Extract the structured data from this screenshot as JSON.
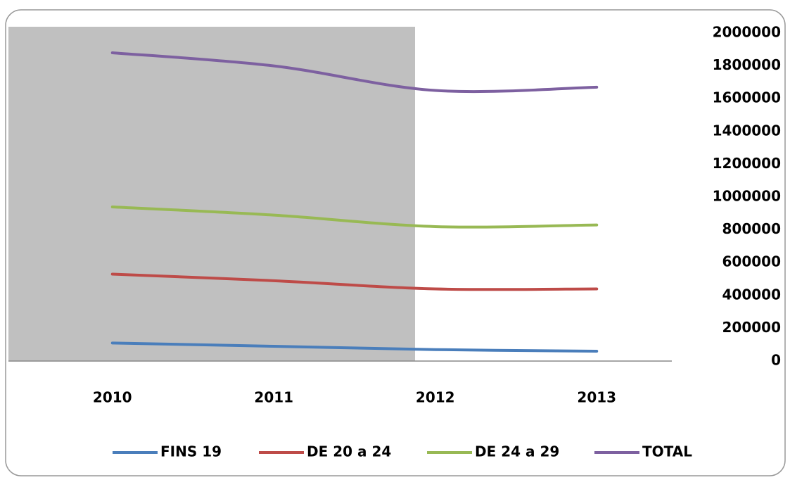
{
  "chart_data": {
    "type": "line",
    "categories": [
      "2010",
      "2011",
      "2012",
      "2013"
    ],
    "series": [
      {
        "name": "FINS 19",
        "color": "#4a7ebb",
        "values": [
          110000,
          90000,
          70000,
          60000
        ]
      },
      {
        "name": "DE 20 a 24",
        "color": "#be4b48",
        "values": [
          530000,
          490000,
          440000,
          440000
        ]
      },
      {
        "name": "DE 24 a 29",
        "color": "#98b954",
        "values": [
          940000,
          890000,
          820000,
          830000
        ]
      },
      {
        "name": "TOTAL",
        "color": "#7d60a0",
        "values": [
          1880000,
          1800000,
          1650000,
          1670000
        ]
      }
    ],
    "ylim": [
      0,
      2000000
    ],
    "yticks": [
      0,
      200000,
      400000,
      600000,
      800000,
      1000000,
      1200000,
      1400000,
      1600000,
      1800000,
      2000000
    ],
    "legend": "bottom"
  }
}
